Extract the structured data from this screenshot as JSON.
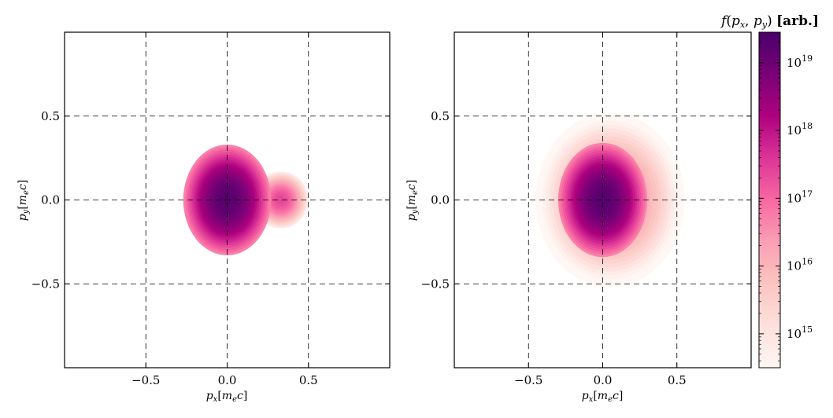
{
  "chart_data": [
    {
      "type": "heatmap",
      "panel": "left",
      "xlabel": "p_x[m_e c]",
      "ylabel": "p_y[m_e c]",
      "xlim": [
        -1.0,
        1.0
      ],
      "ylim": [
        -1.0,
        1.0
      ],
      "xticks": [
        -0.5,
        0.0,
        0.5
      ],
      "yticks": [
        -0.5,
        0.0,
        0.5
      ],
      "xtick_labels": [
        "−0.5",
        "0.0",
        "0.5"
      ],
      "ytick_labels": [
        "−0.5",
        "0.0",
        "0.5"
      ],
      "grid": true,
      "grid_style": "dashed",
      "blobs": [
        {
          "cx": 0.0,
          "cy": 0.0,
          "rx": 0.27,
          "ry": 0.33,
          "peak_log10": 19.3
        },
        {
          "cx": 0.33,
          "cy": 0.0,
          "rx": 0.17,
          "ry": 0.17,
          "peak_log10": 17.4
        }
      ]
    },
    {
      "type": "heatmap",
      "panel": "right",
      "xlabel": "p_x[m_e c]",
      "ylabel": "p_y[m_e c]",
      "xlim": [
        -1.0,
        1.0
      ],
      "ylim": [
        -1.0,
        1.0
      ],
      "xticks": [
        -0.5,
        0.0,
        0.5
      ],
      "yticks": [
        -0.5,
        0.0,
        0.5
      ],
      "xtick_labels": [
        "−0.5",
        "0.0",
        "0.5"
      ],
      "ytick_labels": [
        "−0.5",
        "0.0",
        "0.5"
      ],
      "grid": true,
      "grid_style": "dashed",
      "blobs": [
        {
          "cx": 0.0,
          "cy": 0.0,
          "rx": 0.3,
          "ry": 0.34,
          "peak_log10": 19.3
        },
        {
          "cx": 0.05,
          "cy": 0.0,
          "rx": 0.5,
          "ry": 0.52,
          "peak_log10": 16.8
        }
      ]
    }
  ],
  "colorbar": {
    "title": "f(p_x, p_y) [arb.]",
    "scale": "log",
    "range_log10": [
      14.5,
      19.45
    ],
    "tick_exponents": [
      15,
      16,
      17,
      18,
      19
    ],
    "tick_base": "10",
    "colors": [
      "#fff7f3",
      "#fde0dd",
      "#fcc5c0",
      "#fa9fb5",
      "#f768a1",
      "#dd3497",
      "#ae017e",
      "#7a0177",
      "#49006a"
    ]
  }
}
